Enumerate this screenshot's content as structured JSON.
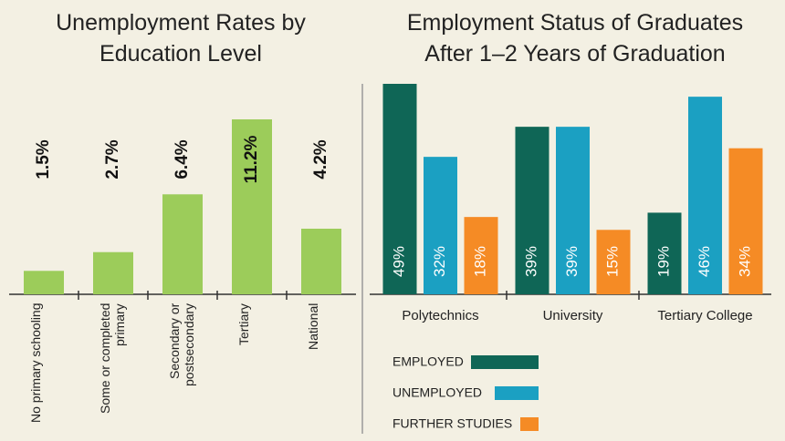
{
  "chart_data": [
    {
      "type": "bar",
      "title": "Unemployment Rates by Education Level",
      "categories": [
        "No primary schooling",
        "Some or completed primary",
        "Secondary or postsecondary",
        "Tertiary",
        "National"
      ],
      "values": [
        1.5,
        2.7,
        6.4,
        11.2,
        4.2
      ],
      "value_labels": [
        "1.5%",
        "2.7%",
        "6.4%",
        "11.2%",
        "4.2%"
      ],
      "color": "#9ccc5a"
    },
    {
      "type": "bar",
      "title": "Employment Status of Graduates After 1–2 Years of Graduation",
      "categories": [
        "Polytechnics",
        "University",
        "Tertiary College"
      ],
      "series": [
        {
          "name": "EMPLOYED",
          "color": "#0f6656",
          "values": [
            49,
            39,
            19
          ],
          "value_labels": [
            "49%",
            "39%",
            "19%"
          ]
        },
        {
          "name": "UNEMPLOYED",
          "color": "#1ba0c2",
          "values": [
            32,
            39,
            46
          ],
          "value_labels": [
            "32%",
            "39%",
            "46%"
          ]
        },
        {
          "name": "FURTHER STUDIES",
          "color": "#f58b25",
          "values": [
            18,
            15,
            34
          ],
          "value_labels": [
            "18%",
            "15%",
            "34%"
          ]
        }
      ]
    }
  ]
}
